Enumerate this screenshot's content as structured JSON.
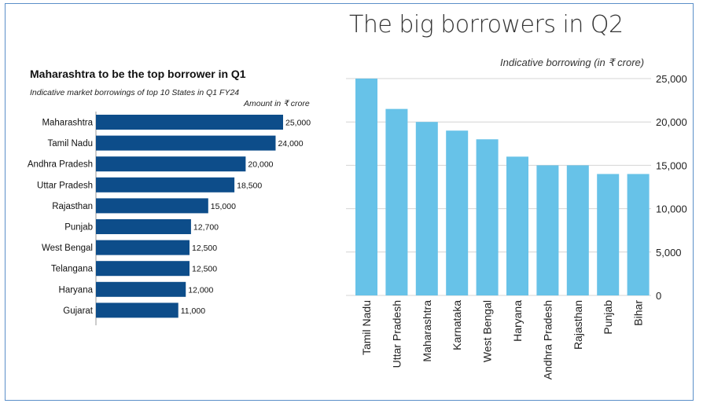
{
  "chart_data": [
    {
      "type": "bar",
      "orientation": "horizontal",
      "title": "Maharashtra to be the top borrower in Q1",
      "subtitle": "Indicative market borrowings of top 10 States in Q1 FY24",
      "unit_label": "Amount in ₹ crore",
      "categories": [
        "Maharashtra",
        "Tamil Nadu",
        "Andhra Pradesh",
        "Uttar Pradesh",
        "Rajasthan",
        "Punjab",
        "West Bengal",
        "Telangana",
        "Haryana",
        "Gujarat"
      ],
      "values": [
        25000,
        24000,
        20000,
        18500,
        15000,
        12700,
        12500,
        12500,
        12000,
        11000
      ],
      "value_labels": [
        "25,000",
        "24,000",
        "20,000",
        "18,500",
        "15,000",
        "12,700",
        "12,500",
        "12,500",
        "12,000",
        "11,000"
      ],
      "xlim": [
        0,
        25000
      ],
      "bar_color": "#0d4d8a"
    },
    {
      "type": "bar",
      "orientation": "vertical",
      "title": "The big borrowers in Q2",
      "ylabel": "Indicative borrowing (in ₹ crore)",
      "categories": [
        "Tamil Nadu",
        "Uttar Pradesh",
        "Maharashtra",
        "Karnataka",
        "West Bengal",
        "Haryana",
        "Andhra Pradesh",
        "Rajasthan",
        "Punjab",
        "Bihar"
      ],
      "values": [
        25000,
        21500,
        20000,
        19000,
        18000,
        16000,
        15000,
        15000,
        14000,
        14000
      ],
      "ylim": [
        0,
        25000
      ],
      "yticks": [
        0,
        5000,
        10000,
        15000,
        20000,
        25000
      ],
      "ytick_labels": [
        "0",
        "5,000",
        "10,000",
        "15,000",
        "20,000",
        "25,000"
      ],
      "grid": true,
      "bar_color": "#67c2e8"
    }
  ]
}
